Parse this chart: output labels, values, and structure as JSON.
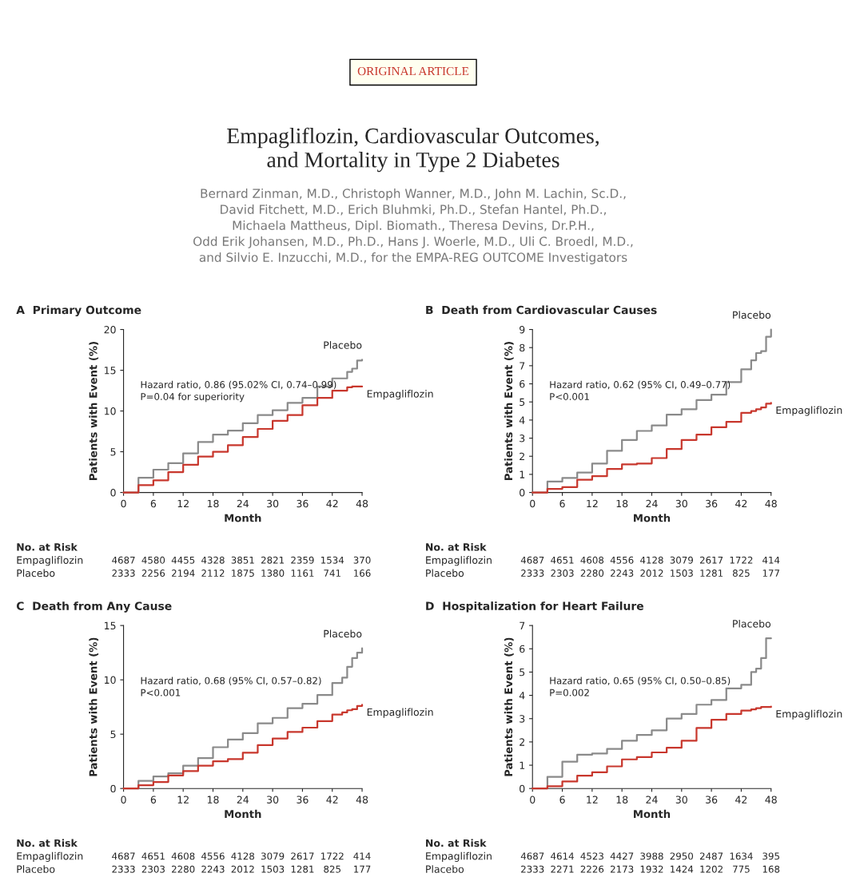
{
  "chart_data": [
    {
      "type": "other",
      "title": "Empagliflozin, Cardiovascular Outcomes,\nand Mortality in Type 2 Diabetes",
      "subtitle": "Bernard Zinman, M.D., Christoph Wanner, M.D., John M. Lachin, Sc.D.,\nDavid Fitchett, M.D., Erich Bluhmki, Ph.D., Stefan Hantel, Ph.D.,\nMichaela Mattheus, Dipl. Biomath., Theresa Devins, Dr.P.H.,\nOdd Erik Johansen, M.D., Ph.D., Hans J. Woerle, M.D., Uli C. Broedl, M.D.,\nand Silvio E. Inzucchi, M.D., for the EMPA-REG OUTCOME Investigators",
      "annotations": [
        "ORIGINAL ARTICLE"
      ]
    },
    {
      "type": "step",
      "title": "A  Primary Outcome",
      "xlabel": "Month",
      "ylabel": "Patients with Event (%)",
      "xlim": [
        0,
        48
      ],
      "ylim": [
        0,
        20
      ],
      "xticks": [
        0,
        6,
        12,
        18,
        24,
        30,
        36,
        42,
        48
      ],
      "yticks": [
        0,
        5,
        10,
        15,
        20
      ],
      "grid": false,
      "legend": false,
      "x": [
        0,
        3,
        6,
        9,
        12,
        15,
        18,
        21,
        24,
        27,
        30,
        33,
        36,
        39,
        42,
        45,
        46,
        47,
        48
      ],
      "series": [
        {
          "name": "Placebo",
          "color": "#8a8a8a",
          "values": [
            0,
            1.8,
            2.8,
            3.6,
            4.8,
            6.2,
            7.1,
            7.6,
            8.5,
            9.5,
            10.1,
            11,
            11.6,
            13,
            14,
            14.8,
            15.2,
            16.2,
            16.3
          ]
        },
        {
          "name": "Empagliflozin",
          "color": "#c8372d",
          "values": [
            0,
            0.9,
            1.5,
            2.5,
            3.4,
            4.4,
            5,
            5.8,
            6.8,
            7.8,
            8.8,
            9.5,
            10.7,
            11.6,
            12.5,
            12.9,
            13,
            13,
            13
          ]
        }
      ],
      "annotations": [
        "Hazard ratio, 0.86 (95.02% CI, 0.74–0.99)\nP=0.04 for superiority",
        "No. at Risk",
        "Empagliflozin",
        "4687",
        "4580",
        "4455",
        "4328",
        "3851",
        "2821",
        "2359",
        "1534",
        "370",
        "Placebo",
        "2333",
        "2256",
        "2194",
        "2112",
        "1875",
        "1380",
        "1161",
        "741",
        "166"
      ]
    },
    {
      "type": "step",
      "title": "B  Death from Cardiovascular Causes",
      "xlabel": "Month",
      "ylabel": "Patients with Event (%)",
      "xlim": [
        0,
        48
      ],
      "ylim": [
        0,
        9
      ],
      "xticks": [
        0,
        6,
        12,
        18,
        24,
        30,
        36,
        42,
        48
      ],
      "yticks": [
        0,
        1,
        2,
        3,
        4,
        5,
        6,
        7,
        8,
        9
      ],
      "grid": false,
      "legend": false,
      "x": [
        0,
        3,
        6,
        9,
        12,
        15,
        18,
        21,
        24,
        27,
        30,
        33,
        36,
        39,
        42,
        44,
        45,
        46,
        47,
        48
      ],
      "series": [
        {
          "name": "Placebo",
          "color": "#8a8a8a",
          "values": [
            0,
            0.6,
            0.8,
            1.1,
            1.6,
            2.3,
            2.9,
            3.4,
            3.7,
            4.3,
            4.6,
            5.1,
            5.4,
            6.1,
            6.8,
            7.3,
            7.7,
            7.8,
            8.6,
            9.0
          ]
        },
        {
          "name": "Empagliflozin",
          "color": "#c8372d",
          "values": [
            0,
            0.2,
            0.3,
            0.7,
            0.9,
            1.3,
            1.55,
            1.6,
            1.9,
            2.4,
            2.9,
            3.2,
            3.6,
            3.9,
            4.4,
            4.5,
            4.6,
            4.7,
            4.9,
            4.95
          ]
        }
      ],
      "annotations": [
        "Hazard ratio, 0.62 (95% CI, 0.49–0.77)\nP<0.001",
        "No. at Risk",
        "Empagliflozin",
        "4687",
        "4651",
        "4608",
        "4556",
        "4128",
        "3079",
        "2617",
        "1722",
        "414",
        "Placebo",
        "2333",
        "2303",
        "2280",
        "2243",
        "2012",
        "1503",
        "1281",
        "825",
        "177"
      ]
    },
    {
      "type": "step",
      "title": "C  Death from Any Cause",
      "xlabel": "Month",
      "ylabel": "Patients with Event (%)",
      "xlim": [
        0,
        48
      ],
      "ylim": [
        0,
        15
      ],
      "xticks": [
        0,
        6,
        12,
        18,
        24,
        30,
        36,
        42,
        48
      ],
      "yticks": [
        0,
        5,
        10,
        15
      ],
      "grid": false,
      "legend": false,
      "x": [
        0,
        3,
        6,
        9,
        12,
        15,
        18,
        21,
        24,
        27,
        30,
        33,
        36,
        39,
        42,
        44,
        45,
        46,
        47,
        48
      ],
      "series": [
        {
          "name": "Placebo",
          "color": "#8a8a8a",
          "values": [
            0,
            0.7,
            1.1,
            1.4,
            2.1,
            2.8,
            3.8,
            4.5,
            5.1,
            6.0,
            6.5,
            7.4,
            7.8,
            8.6,
            9.7,
            10.2,
            11.2,
            12.0,
            12.5,
            12.9
          ]
        },
        {
          "name": "Empagliflozin",
          "color": "#c8372d",
          "values": [
            0,
            0.3,
            0.6,
            1.2,
            1.6,
            2.1,
            2.5,
            2.7,
            3.3,
            4.0,
            4.6,
            5.2,
            5.6,
            6.2,
            6.8,
            7.0,
            7.2,
            7.3,
            7.6,
            7.7
          ]
        }
      ],
      "annotations": [
        "Hazard ratio, 0.68 (95% CI, 0.57–0.82)\nP<0.001",
        "No. at Risk",
        "Empagliflozin",
        "4687",
        "4651",
        "4608",
        "4556",
        "4128",
        "3079",
        "2617",
        "1722",
        "414",
        "Placebo",
        "2333",
        "2303",
        "2280",
        "2243",
        "2012",
        "1503",
        "1281",
        "825",
        "177"
      ]
    },
    {
      "type": "step",
      "title": "D  Hospitalization for Heart Failure",
      "xlabel": "Month",
      "ylabel": "Patients with Event (%)",
      "xlim": [
        0,
        48
      ],
      "ylim": [
        0,
        7
      ],
      "xticks": [
        0,
        6,
        12,
        18,
        24,
        30,
        36,
        42,
        48
      ],
      "yticks": [
        0,
        1,
        2,
        3,
        4,
        5,
        6,
        7
      ],
      "grid": false,
      "legend": false,
      "x": [
        0,
        3,
        6,
        9,
        12,
        15,
        18,
        21,
        24,
        27,
        30,
        33,
        36,
        39,
        42,
        44,
        45,
        46,
        47,
        48
      ],
      "series": [
        {
          "name": "Placebo",
          "color": "#8a8a8a",
          "values": [
            0,
            0.5,
            1.15,
            1.45,
            1.5,
            1.7,
            2.05,
            2.3,
            2.5,
            3.0,
            3.2,
            3.6,
            3.8,
            4.3,
            4.45,
            5.0,
            5.15,
            5.6,
            6.45,
            6.45
          ]
        },
        {
          "name": "Empagliflozin",
          "color": "#c8372d",
          "values": [
            0,
            0.1,
            0.3,
            0.55,
            0.7,
            0.95,
            1.25,
            1.35,
            1.55,
            1.75,
            2.05,
            2.6,
            2.95,
            3.2,
            3.35,
            3.4,
            3.45,
            3.5,
            3.5,
            3.52
          ]
        }
      ],
      "annotations": [
        "Hazard ratio, 0.65 (95% CI, 0.50–0.85)\nP=0.002",
        "No. at Risk",
        "Empagliflozin",
        "4687",
        "4614",
        "4523",
        "4427",
        "3988",
        "2950",
        "2487",
        "1634",
        "395",
        "Placebo",
        "2333",
        "2271",
        "2226",
        "2173",
        "1932",
        "1424",
        "1202",
        "775",
        "168"
      ]
    }
  ]
}
